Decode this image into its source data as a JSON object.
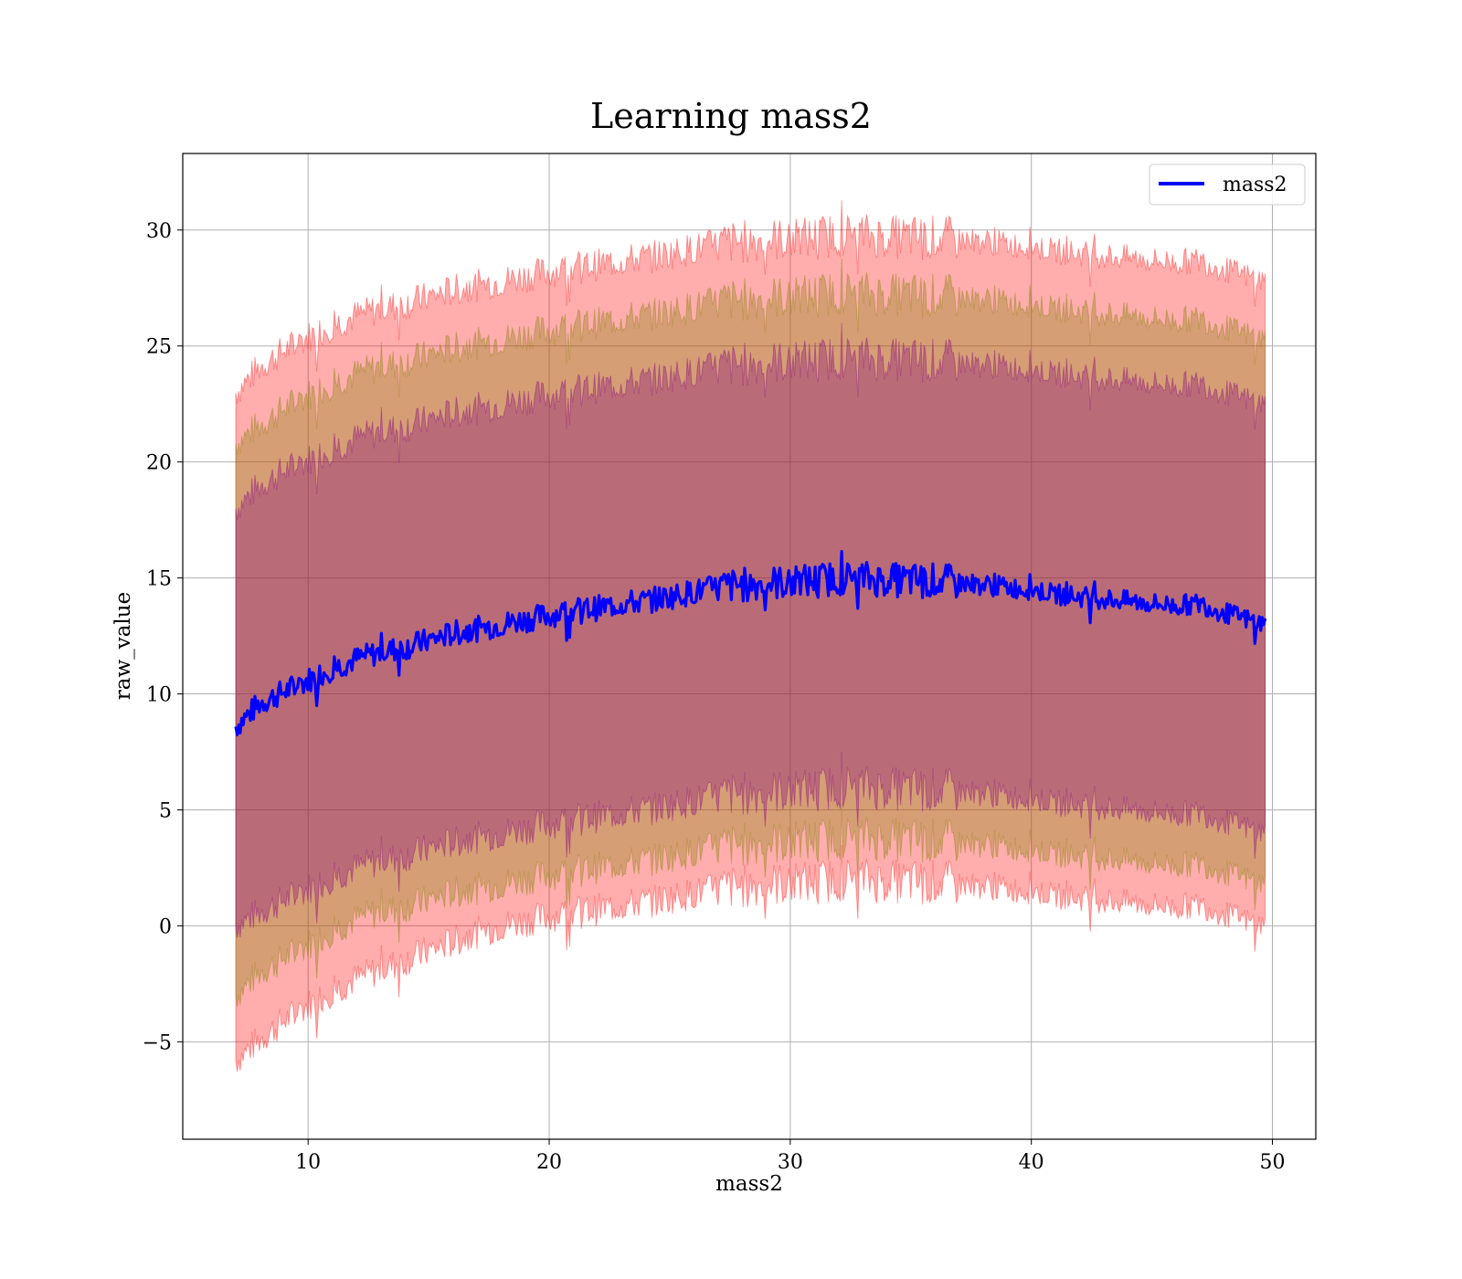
{
  "chart_data": {
    "type": "area",
    "title": "Learning mass2",
    "xlabel": "mass2",
    "ylabel": "raw_value",
    "xlim": [
      4.8,
      51.8
    ],
    "ylim": [
      -9.2,
      33.3
    ],
    "xticks": [
      10,
      20,
      30,
      40,
      50
    ],
    "yticks": [
      -5,
      0,
      5,
      10,
      15,
      20,
      25,
      30
    ],
    "ytick_labels": [
      "−5",
      "0",
      "5",
      "10",
      "15",
      "20",
      "25",
      "30"
    ],
    "grid": true,
    "legend_position": "upper right",
    "series": [
      {
        "name": "mass2",
        "color": "#0000ff",
        "x": [
          7.0,
          8.0,
          9.0,
          10.0,
          11.0,
          12.0,
          13.0,
          14.0,
          15.0,
          16.0,
          17.0,
          18.0,
          19.0,
          20.0,
          21.0,
          22.0,
          23.0,
          24.0,
          25.0,
          26.0,
          27.0,
          28.0,
          29.0,
          30.0,
          31.0,
          32.0,
          33.0,
          34.0,
          35.0,
          36.0,
          37.0,
          38.0,
          39.0,
          40.0,
          41.0,
          42.0,
          43.0,
          44.0,
          45.0,
          46.0,
          47.0,
          48.0,
          49.0,
          49.7
        ],
        "y": [
          8.6,
          9.6,
          10.1,
          10.6,
          11.1,
          11.5,
          11.8,
          12.0,
          12.3,
          12.6,
          12.8,
          13.0,
          13.2,
          13.4,
          13.6,
          13.7,
          13.9,
          14.0,
          14.2,
          14.4,
          14.6,
          14.7,
          14.8,
          14.8,
          14.9,
          15.0,
          15.0,
          14.9,
          14.9,
          14.9,
          14.8,
          14.7,
          14.6,
          14.5,
          14.3,
          14.2,
          14.1,
          14.0,
          13.9,
          13.8,
          13.9,
          13.5,
          13.2,
          13.0
        ]
      }
    ],
    "bands": [
      {
        "color": "#ff0000",
        "opacity": 0.32,
        "lower": [
          -5.8,
          -4.9,
          -4.1,
          -3.4,
          -2.8,
          -2.3,
          -1.9,
          -1.5,
          -1.1,
          -0.7,
          -0.3,
          0.0,
          0.2,
          0.4,
          0.6,
          0.7,
          0.9,
          1.0,
          1.2,
          1.4,
          1.6,
          1.7,
          1.8,
          1.8,
          1.9,
          2.0,
          2.0,
          1.9,
          1.9,
          1.9,
          1.8,
          1.7,
          1.6,
          1.5,
          1.3,
          1.2,
          1.1,
          1.0,
          0.9,
          0.8,
          0.9,
          0.5,
          0.2,
          0.0
        ],
        "upper": [
          23.0,
          24.1,
          24.8,
          25.4,
          25.9,
          26.3,
          26.6,
          26.8,
          27.1,
          27.4,
          27.6,
          27.8,
          28.0,
          28.2,
          28.4,
          28.5,
          28.7,
          28.8,
          29.0,
          29.2,
          29.4,
          29.5,
          29.6,
          29.6,
          29.7,
          29.8,
          29.8,
          29.7,
          29.7,
          29.7,
          29.6,
          29.5,
          29.4,
          29.3,
          29.1,
          29.0,
          28.9,
          28.8,
          28.7,
          28.6,
          28.7,
          28.3,
          28.0,
          27.8
        ]
      },
      {
        "color": "#808000",
        "opacity": 0.32,
        "lower": [
          -3.0,
          -2.0,
          -1.4,
          -0.8,
          -0.2,
          0.3,
          0.6,
          0.8,
          1.1,
          1.4,
          1.6,
          1.8,
          2.0,
          2.2,
          2.4,
          2.5,
          2.7,
          2.8,
          3.0,
          3.2,
          3.4,
          3.5,
          3.6,
          3.6,
          3.7,
          3.8,
          3.8,
          3.7,
          3.7,
          3.7,
          3.6,
          3.5,
          3.4,
          3.3,
          3.1,
          3.0,
          2.9,
          2.8,
          2.7,
          2.6,
          2.7,
          2.3,
          2.0,
          1.8
        ],
        "upper": [
          20.8,
          21.6,
          22.3,
          22.9,
          23.4,
          23.8,
          24.1,
          24.3,
          24.6,
          24.9,
          25.1,
          25.3,
          25.5,
          25.7,
          25.9,
          26.0,
          26.2,
          26.3,
          26.5,
          26.7,
          26.9,
          27.0,
          27.1,
          27.1,
          27.2,
          27.3,
          27.3,
          27.2,
          27.2,
          27.2,
          27.1,
          27.0,
          26.9,
          26.8,
          26.6,
          26.5,
          26.4,
          26.3,
          26.2,
          26.1,
          26.2,
          25.8,
          25.5,
          25.3
        ]
      },
      {
        "color": "#800080",
        "opacity": 0.32,
        "lower": [
          0.0,
          0.6,
          1.1,
          1.6,
          2.1,
          2.5,
          2.8,
          3.0,
          3.3,
          3.6,
          3.8,
          4.0,
          4.2,
          4.4,
          4.6,
          4.7,
          4.9,
          5.0,
          5.2,
          5.4,
          5.6,
          5.7,
          5.8,
          5.8,
          5.9,
          6.0,
          6.0,
          5.9,
          5.9,
          5.9,
          5.8,
          5.7,
          5.6,
          5.5,
          5.3,
          5.2,
          5.1,
          5.0,
          4.9,
          4.8,
          4.9,
          4.5,
          4.2,
          4.0
        ],
        "upper": [
          18.0,
          19.0,
          19.6,
          20.1,
          20.6,
          21.0,
          21.3,
          21.5,
          21.8,
          22.1,
          22.3,
          22.5,
          22.7,
          22.9,
          23.1,
          23.2,
          23.4,
          23.5,
          23.7,
          23.9,
          24.1,
          24.2,
          24.3,
          24.3,
          24.4,
          24.5,
          24.5,
          24.4,
          24.4,
          24.4,
          24.3,
          24.2,
          24.1,
          24.0,
          23.8,
          23.7,
          23.6,
          23.5,
          23.4,
          23.3,
          23.4,
          23.0,
          22.7,
          22.5
        ]
      }
    ]
  }
}
